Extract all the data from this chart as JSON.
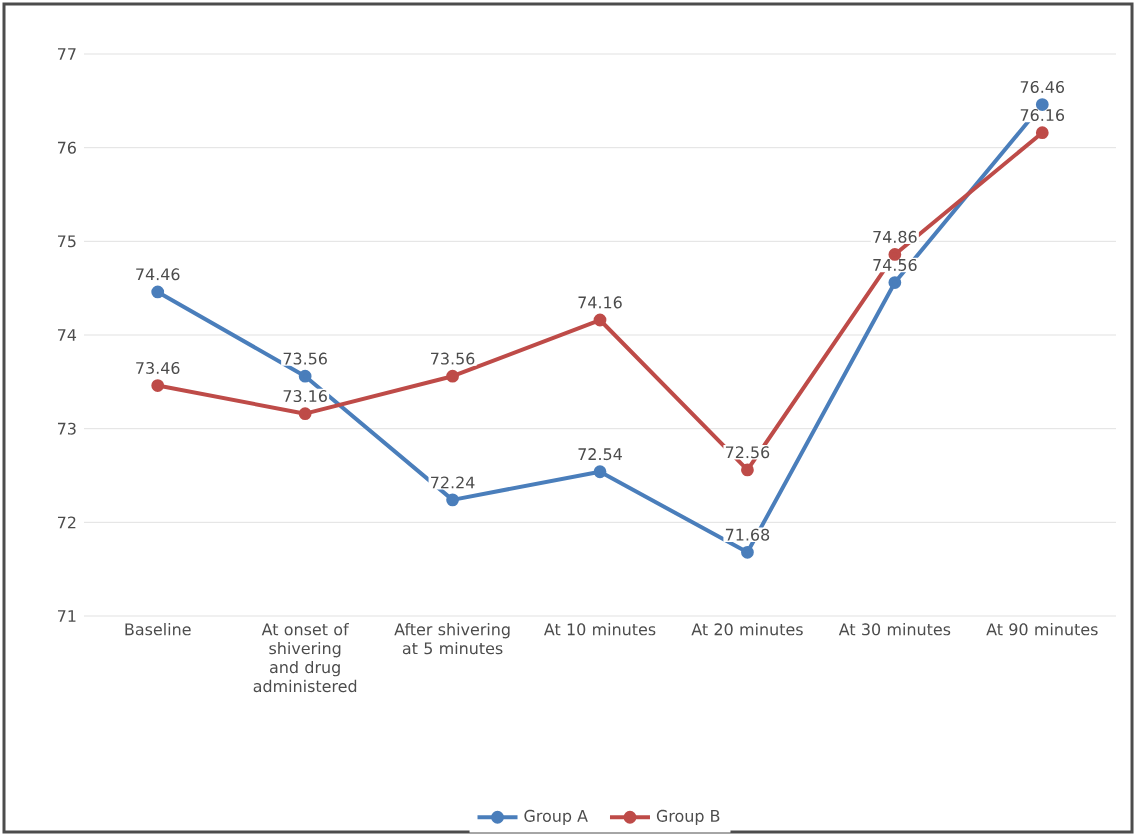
{
  "chart_data": {
    "type": "line",
    "categories": [
      "Baseline",
      "At onset of shivering and drug administered",
      "After shivering at 5 minutes",
      "At 10 minutes",
      "At 20 minutes",
      "At 30 minutes",
      "At 90 minutes"
    ],
    "series": [
      {
        "name": "Group A",
        "color": "#4a7ebb",
        "values": [
          74.46,
          73.56,
          72.24,
          72.54,
          71.68,
          74.56,
          76.46
        ]
      },
      {
        "name": "Group B",
        "color": "#be4b48",
        "values": [
          73.46,
          73.16,
          73.56,
          74.16,
          72.56,
          74.86,
          76.16
        ]
      }
    ],
    "ylim": [
      71,
      77
    ],
    "yticks": [
      71,
      72,
      73,
      74,
      75,
      76,
      77
    ],
    "grid": "y",
    "legend": "bottom",
    "marker": "circle",
    "line_style": "solid",
    "data_labels": true
  }
}
